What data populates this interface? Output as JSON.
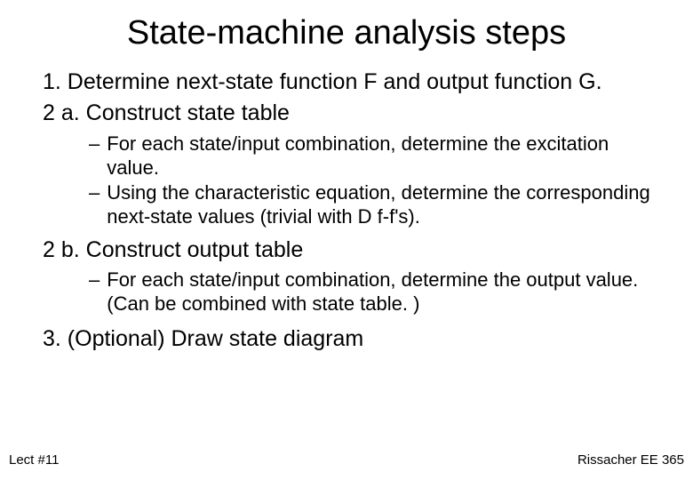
{
  "title": "State-machine analysis steps",
  "steps": {
    "s1": "1.  Determine next-state function F and output function G.",
    "s2a": "2 a.  Construct state table",
    "s2a_sub1": "For each state/input combination, determine the excitation value.",
    "s2a_sub2": "Using the characteristic equation, determine the corresponding next-state values (trivial with D f-f's).",
    "s2b": "2 b.  Construct output table",
    "s2b_sub1": "For each state/input combination, determine the output value. (Can be combined with state table. )",
    "s3": "3.  (Optional) Draw state diagram"
  },
  "footer": {
    "left": "Lect #11",
    "right": "Rissacher EE 365"
  },
  "dash": "–",
  "colors": {
    "background": "#ffffff",
    "text": "#000000"
  },
  "fonts": {
    "title_size": 38,
    "main_size": 25,
    "sub_size": 22,
    "footer_size": 15,
    "family": "Arial"
  }
}
